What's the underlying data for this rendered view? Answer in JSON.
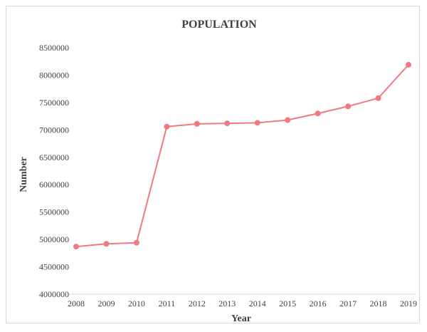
{
  "chart_data": {
    "type": "line",
    "title": "POPULATION",
    "xlabel": "Year",
    "ylabel": "Number",
    "categories": [
      "2008",
      "2009",
      "2010",
      "2011",
      "2012",
      "2013",
      "2014",
      "2015",
      "2016",
      "2017",
      "2018",
      "2019"
    ],
    "y_ticks": [
      "4000000",
      "4500000",
      "5000000",
      "5500000",
      "6000000",
      "6500000",
      "7000000",
      "7500000",
      "8000000",
      "8500000"
    ],
    "series": [
      {
        "values": [
          4870000,
          4920000,
          4940000,
          7060000,
          7110000,
          7120000,
          7130000,
          7180000,
          7300000,
          7430000,
          7580000,
          8190000
        ],
        "color": "#f07a80"
      }
    ],
    "ylim": [
      4000000,
      8500000
    ],
    "grid": false,
    "legend": "none"
  }
}
